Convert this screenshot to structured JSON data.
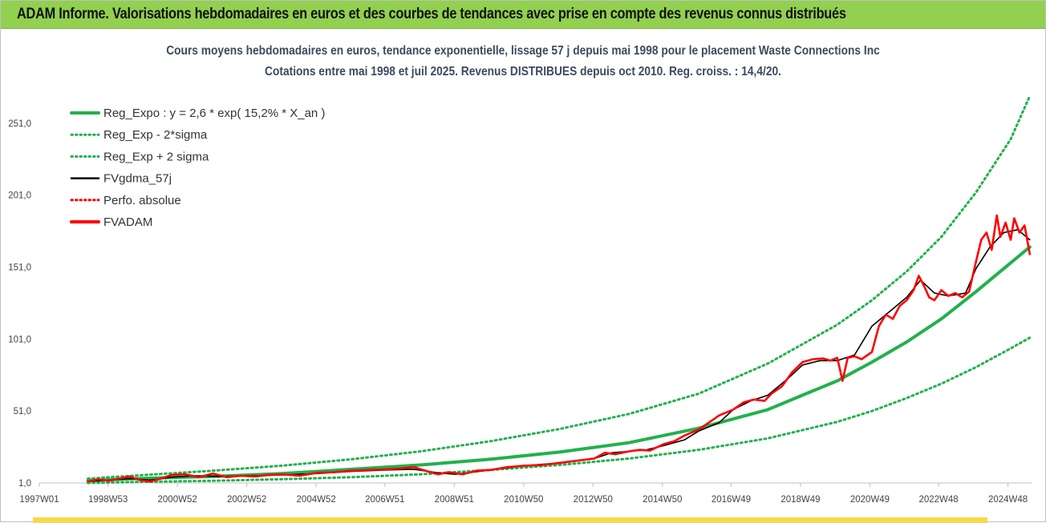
{
  "banner": {
    "title": "ADAM Informe. Valorisations hebdomadaires en euros et des courbes de tendances avec prise en compte des revenus connus distribués"
  },
  "chart_data": {
    "type": "line",
    "title": "Cours moyens hebdomadaires en euros, tendance exponentielle, lissage 57 j depuis mai 1998 pour le placement Waste Connections Inc",
    "subtitle": "Cotations entre mai 1998 et juil 2025. Revenus DISTRIBUES depuis oct 2010.  Reg. croiss. : 14,4/20.",
    "xlabel": "",
    "ylabel": "",
    "x_range": [
      1997.0,
      2025.6
    ],
    "ylim": [
      1.0,
      276.0
    ],
    "y_ticks": [
      1.0,
      51.0,
      101.0,
      151.0,
      201.0,
      251.0
    ],
    "y_tick_labels": [
      "1,0",
      "51,0",
      "101,0",
      "151,0",
      "201,0",
      "251,0"
    ],
    "x_ticks": [
      1997.0,
      1998.98,
      2000.98,
      2002.98,
      2004.98,
      2006.96,
      2008.96,
      2010.96,
      2012.96,
      2014.96,
      2016.94,
      2018.94,
      2020.94,
      2022.92,
      2024.92
    ],
    "x_tick_labels": [
      "1997W01",
      "1998W53",
      "2000W52",
      "2002W52",
      "2004W52",
      "2006W51",
      "2008W51",
      "2010W50",
      "2012W50",
      "2014W50",
      "2016W49",
      "2018W49",
      "2020W49",
      "2022W48",
      "2024W48"
    ],
    "grid": false,
    "legend_position": "top-left",
    "legend": [
      {
        "label": "Reg_Expo : y = 2,6 * exp( 15,2% *  X_an )",
        "color": "#22b14c",
        "style": "solid"
      },
      {
        "label": "Reg_Exp - 2*sigma",
        "color": "#22b14c",
        "style": "dotted"
      },
      {
        "label": "Reg_Exp + 2 sigma",
        "color": "#22b14c",
        "style": "dotted"
      },
      {
        "label": "FVgdma_57j",
        "color": "#000000",
        "style": "solid"
      },
      {
        "label": "Perfo. absolue",
        "color": "#ff0000",
        "style": "dotted"
      },
      {
        "label": "FVADAM",
        "color": "#ff0000",
        "style": "solid"
      }
    ],
    "series": [
      {
        "name": "Reg_Expo : y = 2,6 * exp( 15,2% *  X_an )",
        "color": "#22b14c",
        "x": [
          1998.4,
          2000.0,
          2002.0,
          2004.0,
          2006.0,
          2008.0,
          2010.0,
          2012.0,
          2014.0,
          2016.0,
          2018.0,
          2019.0,
          2020.0,
          2021.0,
          2022.0,
          2023.0,
          2024.0,
          2025.0,
          2025.55
        ],
        "y": [
          2.6,
          4.2,
          5.5,
          7.5,
          10.5,
          13.5,
          17.5,
          22.5,
          29.0,
          39.0,
          52.0,
          62.0,
          72.0,
          85.0,
          99.0,
          115.0,
          134.0,
          154.0,
          165.0
        ]
      },
      {
        "name": "Reg_Exp - 2*sigma",
        "color": "#22b14c",
        "x": [
          1998.4,
          2000.0,
          2002.0,
          2004.0,
          2006.0,
          2008.0,
          2010.0,
          2012.0,
          2014.0,
          2016.0,
          2018.0,
          2020.0,
          2021.0,
          2022.0,
          2023.0,
          2024.0,
          2025.0,
          2025.55
        ],
        "y": [
          1.0,
          1.8,
          2.5,
          3.6,
          5.0,
          7.0,
          10.0,
          13.5,
          18.0,
          24.0,
          32.0,
          43.5,
          51.0,
          60.0,
          70.0,
          81.5,
          94.5,
          102.0
        ]
      },
      {
        "name": "Reg_Exp + 2 sigma",
        "color": "#22b14c",
        "x": [
          1998.4,
          2000.0,
          2002.0,
          2004.0,
          2006.0,
          2008.0,
          2010.0,
          2012.0,
          2014.0,
          2016.0,
          2018.0,
          2020.0,
          2021.0,
          2022.0,
          2023.0,
          2024.0,
          2025.0,
          2025.55
        ],
        "y": [
          4.0,
          6.5,
          9.5,
          13.0,
          17.5,
          23.0,
          30.0,
          38.5,
          49.0,
          63.0,
          84.0,
          111.0,
          128.0,
          148.0,
          172.0,
          203.0,
          240.0,
          270.0
        ]
      },
      {
        "name": "FVgdma_57j",
        "color": "#000000",
        "x": [
          1998.4,
          1999.0,
          1999.6,
          2000.2,
          2000.8,
          2001.5,
          2002.2,
          2003.0,
          2004.0,
          2005.0,
          2006.0,
          2007.0,
          2007.8,
          2008.5,
          2009.0,
          2010.0,
          2011.0,
          2012.0,
          2013.0,
          2013.5,
          2014.0,
          2014.5,
          2015.0,
          2015.6,
          2016.0,
          2016.6,
          2017.0,
          2017.5,
          2018.0,
          2018.3,
          2018.6,
          2019.0,
          2019.5,
          2020.0,
          2020.5,
          2021.0,
          2021.5,
          2022.0,
          2022.4,
          2022.8,
          2023.2,
          2023.7,
          2024.0,
          2024.4,
          2024.8,
          2025.2,
          2025.55
        ],
        "y": [
          2.0,
          3.0,
          4.0,
          3.0,
          5.0,
          6.0,
          5.5,
          6.0,
          6.5,
          7.5,
          9.0,
          10.0,
          10.5,
          8.0,
          7.0,
          10.0,
          13.0,
          15.0,
          18.0,
          22.0,
          23.0,
          24.0,
          27.0,
          31.0,
          37.0,
          43.0,
          52.0,
          58.0,
          62.0,
          68.0,
          74.0,
          83.0,
          86.0,
          86.0,
          90.0,
          110.0,
          120.0,
          130.0,
          142.0,
          133.0,
          131.0,
          133.0,
          150.0,
          165.0,
          175.0,
          177.0,
          170.0
        ]
      },
      {
        "name": "FVADAM",
        "color": "#ff0000",
        "x": [
          1998.4,
          1998.7,
          1999.0,
          1999.3,
          1999.6,
          1999.9,
          2000.2,
          2000.5,
          2000.8,
          2001.2,
          2001.6,
          2002.0,
          2002.4,
          2002.8,
          2003.2,
          2003.6,
          2004.0,
          2004.5,
          2005.0,
          2005.5,
          2006.0,
          2006.5,
          2007.0,
          2007.4,
          2007.8,
          2008.2,
          2008.5,
          2008.8,
          2009.2,
          2009.6,
          2010.0,
          2010.5,
          2011.0,
          2011.5,
          2012.0,
          2012.5,
          2013.0,
          2013.3,
          2013.6,
          2014.0,
          2014.3,
          2014.6,
          2015.0,
          2015.3,
          2015.6,
          2016.0,
          2016.3,
          2016.6,
          2017.0,
          2017.3,
          2017.6,
          2017.9,
          2018.1,
          2018.4,
          2018.7,
          2019.0,
          2019.3,
          2019.6,
          2019.8,
          2020.0,
          2020.15,
          2020.3,
          2020.5,
          2020.7,
          2021.0,
          2021.2,
          2021.4,
          2021.6,
          2021.8,
          2022.0,
          2022.2,
          2022.35,
          2022.5,
          2022.65,
          2022.8,
          2023.0,
          2023.2,
          2023.4,
          2023.6,
          2023.8,
          2024.0,
          2024.15,
          2024.3,
          2024.45,
          2024.6,
          2024.7,
          2024.85,
          2025.0,
          2025.1,
          2025.25,
          2025.4,
          2025.55
        ],
        "y": [
          2.0,
          3.5,
          2.5,
          4.0,
          5.5,
          3.0,
          2.0,
          4.0,
          6.5,
          7.0,
          5.0,
          7.5,
          5.0,
          6.0,
          5.5,
          6.5,
          7.0,
          6.0,
          8.0,
          8.5,
          9.5,
          10.0,
          10.5,
          11.0,
          12.0,
          9.0,
          7.0,
          8.5,
          7.0,
          9.5,
          10.0,
          12.0,
          13.0,
          13.5,
          15.0,
          16.5,
          18.0,
          22.0,
          21.0,
          23.0,
          24.0,
          23.5,
          28.0,
          30.0,
          34.0,
          38.0,
          43.0,
          48.0,
          52.0,
          57.0,
          59.0,
          58.0,
          63.0,
          68.0,
          78.0,
          85.0,
          87.0,
          87.5,
          86.0,
          88.0,
          72.0,
          88.0,
          89.0,
          87.0,
          92.0,
          110.0,
          118.0,
          115.0,
          124.0,
          128.0,
          135.0,
          145.0,
          138.0,
          130.0,
          128.0,
          135.0,
          131.0,
          133.0,
          130.0,
          134.0,
          155.0,
          170.0,
          175.0,
          163.0,
          187.0,
          172.0,
          182.0,
          170.0,
          185.0,
          175.0,
          180.0,
          160.0
        ]
      }
    ]
  }
}
